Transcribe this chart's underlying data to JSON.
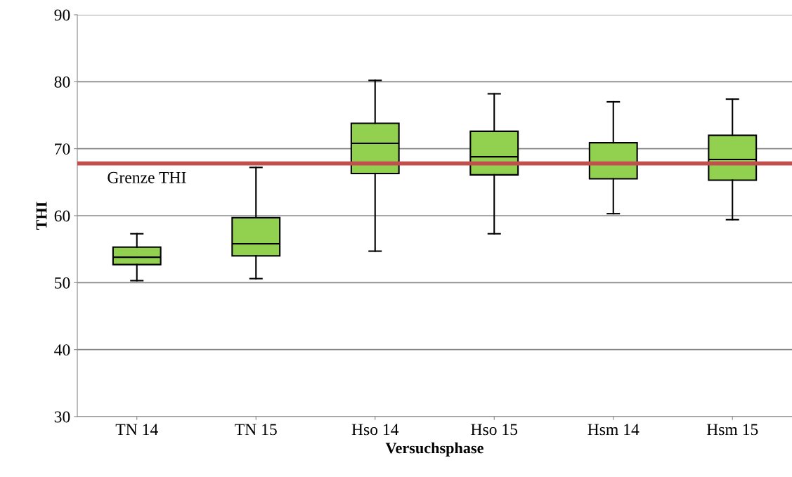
{
  "chart_data": {
    "type": "box",
    "xlabel": "Versuchsphase",
    "ylabel": "THI",
    "categories": [
      "TN 14",
      "TN 15",
      "Hso 14",
      "Hso 15",
      "Hsm 14",
      "Hsm 15"
    ],
    "series": [
      {
        "color": "#92d050",
        "boxes": [
          {
            "low": 50.3,
            "q1": 52.7,
            "median": 53.8,
            "q3": 55.3,
            "high": 57.3
          },
          {
            "low": 50.6,
            "q1": 54.0,
            "median": 55.8,
            "q3": 59.7,
            "high": 67.2
          },
          {
            "low": 54.7,
            "q1": 66.3,
            "median": 70.8,
            "q3": 73.8,
            "high": 80.2
          },
          {
            "low": 57.3,
            "q1": 66.1,
            "median": 68.8,
            "q3": 72.6,
            "high": 78.2
          },
          {
            "low": 60.3,
            "q1": 65.5,
            "median": 67.9,
            "q3": 70.9,
            "high": 77.0
          },
          {
            "low": 59.4,
            "q1": 65.3,
            "median": 68.4,
            "q3": 72.0,
            "high": 77.4
          }
        ]
      }
    ],
    "ylim": [
      30,
      90
    ],
    "yticks": [
      30,
      40,
      50,
      60,
      70,
      80,
      90
    ],
    "grid": "y",
    "ref_lines": [
      {
        "axis": "y",
        "value": 67.8,
        "label": "Grenze THI",
        "color": "#c0504d"
      }
    ]
  }
}
